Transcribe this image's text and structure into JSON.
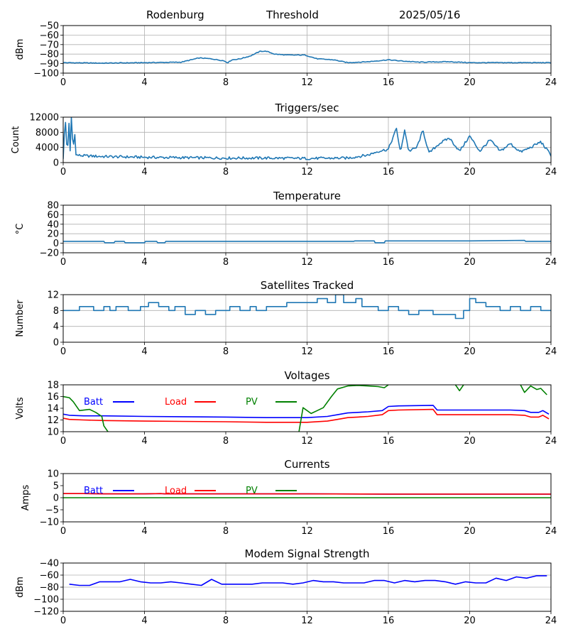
{
  "header": {
    "station": "Rodenburg",
    "mode": "Threshold",
    "date": "2025/05/16"
  },
  "colors": {
    "series_default": "#1f77b4",
    "batt": "#0000ff",
    "load": "#ff0000",
    "pv": "#008000",
    "grid": "#b0b0b0"
  },
  "chart_data": [
    {
      "type": "line",
      "title": "",
      "xlabel": "",
      "ylabel": "dBm",
      "xlim": [
        0,
        24
      ],
      "ylim": [
        -100,
        -50
      ],
      "xticks": [
        0,
        4,
        8,
        12,
        16,
        20,
        24
      ],
      "yticks": [
        -100,
        -90,
        -80,
        -70,
        -60,
        -50
      ],
      "grid": true,
      "series": [
        {
          "color": "#1f77b4",
          "noise": 0.4,
          "x": [
            0,
            2,
            4,
            5.8,
            6.3,
            6.7,
            7.3,
            7.6,
            7.9,
            8.1,
            8.3,
            8.7,
            9.2,
            9.7,
            10,
            10.4,
            11,
            11.9,
            12.5,
            13.3,
            14,
            15,
            16,
            16.5,
            17.5,
            19,
            20,
            22,
            24
          ],
          "y": [
            -89,
            -89.5,
            -89,
            -88.5,
            -86,
            -84,
            -85,
            -86,
            -87,
            -89,
            -86,
            -85,
            -82,
            -77,
            -77,
            -80,
            -81,
            -81,
            -85,
            -86,
            -89,
            -88,
            -86,
            -87,
            -88.5,
            -88,
            -89,
            -89,
            -89
          ]
        }
      ]
    },
    {
      "type": "line",
      "title": "Triggers/sec",
      "xlabel": "",
      "ylabel": "Count",
      "xlim": [
        0,
        24
      ],
      "ylim": [
        0,
        12000
      ],
      "xticks": [
        0,
        4,
        8,
        12,
        16,
        20,
        24
      ],
      "yticks": [
        0,
        4000,
        8000,
        12000
      ],
      "grid": true,
      "series": [
        {
          "color": "#1f77b4",
          "noise": 350,
          "x": [
            0,
            0.1,
            0.2,
            0.3,
            0.35,
            0.4,
            0.5,
            0.55,
            0.6,
            1,
            2,
            3,
            4,
            6,
            8,
            10,
            12,
            14,
            15,
            15.5,
            16,
            16.4,
            16.6,
            16.8,
            17,
            17.4,
            17.7,
            18,
            18.5,
            19,
            19.5,
            20,
            20.5,
            21,
            21.5,
            22,
            22.5,
            23,
            23.5,
            24
          ],
          "y": [
            1200,
            12000,
            2000,
            11500,
            1500,
            12000,
            2000,
            12000,
            2000,
            1800,
            1600,
            1500,
            1400,
            1300,
            1200,
            1200,
            1100,
            1200,
            2000,
            3000,
            3500,
            9000,
            2500,
            8800,
            3000,
            4000,
            8500,
            2500,
            5000,
            6500,
            3000,
            7000,
            3000,
            6000,
            3000,
            5000,
            2800,
            4000,
            5500,
            2000
          ]
        }
      ]
    },
    {
      "type": "line",
      "title": "Temperature",
      "xlabel": "",
      "ylabel": "°C",
      "xlim": [
        0,
        24
      ],
      "ylim": [
        -20,
        80
      ],
      "xticks": [
        0,
        4,
        8,
        12,
        16,
        20,
        24
      ],
      "yticks": [
        -20,
        0,
        20,
        40,
        60,
        80
      ],
      "grid": true,
      "series": [
        {
          "color": "#1f77b4",
          "x": [
            0,
            2,
            2.05,
            2.5,
            2.55,
            3,
            3.05,
            4,
            4.05,
            4.6,
            4.65,
            5,
            5.05,
            12,
            14.3,
            14.35,
            15.3,
            15.35,
            15.8,
            15.85,
            20,
            22.7,
            22.75,
            24
          ],
          "y": [
            4,
            4,
            1,
            1,
            4,
            4,
            1,
            1,
            4,
            4,
            1,
            1,
            4,
            4,
            4,
            5,
            5,
            1,
            1,
            5,
            5,
            6,
            4,
            4
          ]
        }
      ]
    },
    {
      "type": "line",
      "title": "Satellites Tracked",
      "xlabel": "",
      "ylabel": "Number",
      "xlim": [
        0,
        24
      ],
      "ylim": [
        0,
        12
      ],
      "xticks": [
        0,
        4,
        8,
        12,
        16,
        20,
        24
      ],
      "yticks": [
        0,
        4,
        8,
        12
      ],
      "grid": true,
      "series": [
        {
          "color": "#1f77b4",
          "x": [
            0,
            0.8,
            1.5,
            2,
            2.3,
            2.6,
            3.2,
            3.8,
            4.2,
            4.7,
            5.2,
            5.5,
            6,
            6.5,
            7,
            7.5,
            8.2,
            8.7,
            9.2,
            9.5,
            10,
            11,
            11.7,
            12.5,
            13,
            13.4,
            13.8,
            14.4,
            14.7,
            15.5,
            16,
            16.5,
            17,
            17.5,
            18.2,
            19,
            19.3,
            19.7,
            20,
            20.3,
            20.8,
            21.5,
            22,
            22.5,
            23,
            23.5,
            24
          ],
          "y": [
            8,
            9,
            8,
            9,
            8,
            9,
            8,
            9,
            10,
            9,
            8,
            9,
            7,
            8,
            7,
            8,
            9,
            8,
            9,
            8,
            9,
            10,
            10,
            11,
            10,
            12,
            10,
            11,
            9,
            8,
            9,
            8,
            7,
            8,
            7,
            7,
            6,
            8,
            11,
            10,
            9,
            8,
            9,
            8,
            9,
            8,
            8
          ]
        }
      ]
    },
    {
      "type": "line",
      "title": "Voltages",
      "xlabel": "",
      "ylabel": "Volts",
      "xlim": [
        0,
        24
      ],
      "ylim": [
        10,
        18
      ],
      "xticks": [
        0,
        4,
        8,
        12,
        16,
        20,
        24
      ],
      "yticks": [
        10,
        12,
        14,
        16,
        18
      ],
      "grid": false,
      "legend": [
        "Batt",
        "Load",
        "PV"
      ],
      "series": [
        {
          "name": "Batt",
          "color": "#0000ff",
          "x": [
            0,
            0.3,
            1,
            2,
            4,
            8,
            10,
            12,
            13,
            13.5,
            14,
            14.5,
            15,
            15.7,
            16,
            16.5,
            18.2,
            18.4,
            19,
            22,
            22.7,
            23,
            23.4,
            23.6,
            23.9
          ],
          "y": [
            13,
            12.8,
            12.7,
            12.7,
            12.6,
            12.5,
            12.4,
            12.4,
            12.6,
            12.9,
            13.2,
            13.3,
            13.4,
            13.6,
            14.3,
            14.4,
            14.5,
            13.7,
            13.7,
            13.7,
            13.6,
            13.3,
            13.3,
            13.6,
            13
          ]
        },
        {
          "name": "Load",
          "color": "#ff0000",
          "x": [
            0,
            0.3,
            1,
            2,
            4,
            8,
            10,
            12,
            13,
            13.5,
            14,
            14.5,
            15,
            15.7,
            16,
            16.5,
            18.2,
            18.4,
            19,
            22,
            22.7,
            23,
            23.4,
            23.6,
            23.9
          ],
          "y": [
            12.3,
            12.1,
            12,
            11.9,
            11.8,
            11.7,
            11.6,
            11.6,
            11.8,
            12.1,
            12.4,
            12.5,
            12.6,
            12.9,
            13.6,
            13.7,
            13.8,
            12.9,
            12.9,
            12.9,
            12.8,
            12.5,
            12.5,
            12.8,
            12.2
          ]
        },
        {
          "name": "PV",
          "color": "#008000",
          "segments": [
            {
              "x": [
                0,
                0.3,
                0.5,
                0.8,
                1.3,
                1.6,
                1.9,
                2,
                2.2
              ],
              "y": [
                16,
                15.8,
                15.1,
                13.6,
                13.8,
                13.3,
                12.6,
                11,
                10
              ]
            },
            {
              "x": [
                11.6,
                11.8,
                12.2,
                12.5,
                12.8,
                13.2,
                13.5,
                14,
                14.5,
                15,
                15.5,
                15.8,
                16
              ],
              "y": [
                10,
                14.1,
                13.1,
                13.6,
                14.1,
                16,
                17.3,
                17.8,
                17.9,
                17.8,
                17.7,
                17.5,
                18
              ]
            },
            {
              "x": [
                19.3,
                19.5,
                19.7
              ],
              "y": [
                18,
                17,
                18
              ]
            },
            {
              "x": [
                22.5,
                22.7,
                23,
                23.3,
                23.5,
                23.8
              ],
              "y": [
                18,
                16.7,
                17.8,
                17.2,
                17.4,
                16.3
              ]
            }
          ]
        }
      ]
    },
    {
      "type": "line",
      "title": "Currents",
      "xlabel": "",
      "ylabel": "Amps",
      "xlim": [
        0,
        24
      ],
      "ylim": [
        -10,
        10
      ],
      "xticks": [
        0,
        4,
        8,
        12,
        16,
        20,
        24
      ],
      "yticks": [
        -10,
        -5,
        0,
        5,
        10
      ],
      "grid": false,
      "legend": [
        "Batt",
        "Load",
        "PV"
      ],
      "series": [
        {
          "name": "Batt",
          "color": "#0000ff",
          "x": [
            0,
            1,
            2,
            4,
            4.8,
            5,
            8,
            12,
            16,
            18,
            24
          ],
          "y": [
            1.7,
            1.7,
            1.6,
            1.6,
            1.7,
            1.6,
            1.6,
            1.6,
            1.5,
            1.5,
            1.5
          ]
        },
        {
          "name": "Load",
          "color": "#ff0000",
          "x": [
            0,
            1,
            2,
            4,
            4.8,
            5,
            8,
            12,
            16,
            18,
            24
          ],
          "y": [
            1.7,
            1.7,
            1.6,
            1.6,
            1.7,
            1.6,
            1.6,
            1.6,
            1.5,
            1.5,
            1.5
          ]
        },
        {
          "name": "PV",
          "color": "#008000",
          "x": [
            0,
            24
          ],
          "y": [
            0,
            0
          ]
        }
      ]
    },
    {
      "type": "line",
      "title": "Modem Signal Strength",
      "xlabel": "",
      "ylabel": "dBm",
      "xlim": [
        0,
        24
      ],
      "ylim": [
        -120,
        -40
      ],
      "xticks": [
        0,
        4,
        8,
        12,
        16,
        20,
        24
      ],
      "yticks": [
        -120,
        -100,
        -80,
        -60,
        -40
      ],
      "grid": true,
      "series": [
        {
          "color": "#0000ff",
          "x": [
            0.3,
            0.8,
            1.3,
            1.8,
            2.3,
            2.8,
            3.3,
            3.8,
            4.3,
            4.8,
            5.3,
            5.8,
            6.3,
            6.8,
            7.3,
            7.8,
            8.3,
            8.8,
            9.3,
            9.8,
            10.3,
            10.8,
            11.3,
            11.8,
            12.3,
            12.8,
            13.3,
            13.8,
            14.3,
            14.8,
            15.3,
            15.8,
            16.3,
            16.8,
            17.3,
            17.8,
            18.3,
            18.8,
            19.3,
            19.8,
            20.3,
            20.8,
            21.3,
            21.8,
            22.3,
            22.8,
            23.3,
            23.8
          ],
          "y": [
            -75,
            -77,
            -77,
            -71,
            -71,
            -71,
            -67,
            -71,
            -73,
            -73,
            -71,
            -73,
            -75,
            -77,
            -67,
            -75,
            -75,
            -75,
            -75,
            -73,
            -73,
            -73,
            -75,
            -73,
            -69,
            -71,
            -71,
            -73,
            -73,
            -73,
            -69,
            -69,
            -73,
            -69,
            -71,
            -69,
            -69,
            -71,
            -75,
            -71,
            -73,
            -73,
            -65,
            -69,
            -63,
            -65,
            -61,
            -61
          ]
        }
      ]
    }
  ]
}
